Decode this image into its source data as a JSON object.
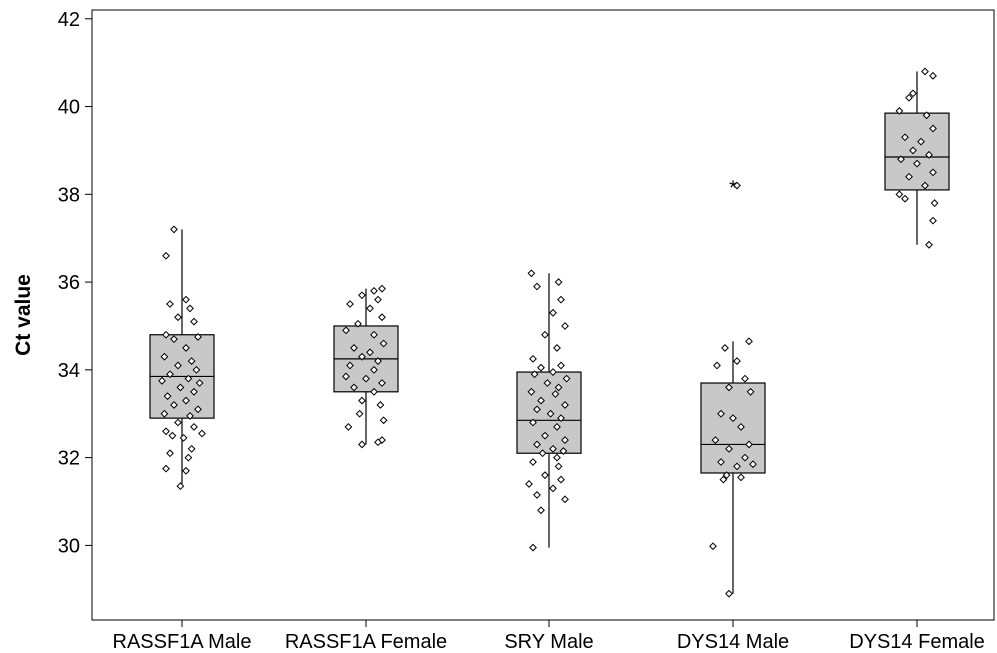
{
  "chart_data": {
    "type": "box",
    "ylabel": "Ct value",
    "xlabel": "",
    "ylim": [
      28.3,
      42.2
    ],
    "yticks": [
      30,
      32,
      34,
      36,
      38,
      40,
      42
    ],
    "grid": false,
    "categories": [
      "RASSF1A Male",
      "RASSF1A Female",
      "SRY Male",
      "DYS14 Male",
      "DYS14 Female"
    ],
    "boxes": [
      {
        "category": "RASSF1A Male",
        "whisker_low": 31.4,
        "q1": 32.9,
        "median": 33.85,
        "q3": 34.8,
        "whisker_high": 37.2,
        "outliers": []
      },
      {
        "category": "RASSF1A Female",
        "whisker_low": 32.3,
        "q1": 33.5,
        "median": 34.25,
        "q3": 35.0,
        "whisker_high": 35.85,
        "outliers": []
      },
      {
        "category": "SRY Male",
        "whisker_low": 29.95,
        "q1": 32.1,
        "median": 32.85,
        "q3": 33.95,
        "whisker_high": 36.2,
        "outliers": []
      },
      {
        "category": "DYS14 Male",
        "whisker_low": 28.9,
        "q1": 31.65,
        "median": 32.3,
        "q3": 33.7,
        "whisker_high": 34.65,
        "outliers": [
          38.2
        ]
      },
      {
        "category": "DYS14 Female",
        "whisker_low": 36.85,
        "q1": 38.1,
        "median": 38.85,
        "q3": 39.85,
        "whisker_high": 40.8,
        "outliers": []
      }
    ],
    "points": [
      [
        [
          -0.1,
          37.2
        ],
        [
          -0.2,
          36.6
        ],
        [
          0.05,
          35.6
        ],
        [
          -0.15,
          35.5
        ],
        [
          0.1,
          35.4
        ],
        [
          -0.05,
          35.2
        ],
        [
          0.15,
          35.1
        ],
        [
          -0.2,
          34.8
        ],
        [
          0.2,
          34.75
        ],
        [
          -0.1,
          34.7
        ],
        [
          0.05,
          34.5
        ],
        [
          -0.22,
          34.3
        ],
        [
          0.12,
          34.2
        ],
        [
          -0.05,
          34.1
        ],
        [
          0.18,
          34.0
        ],
        [
          -0.15,
          33.9
        ],
        [
          0.08,
          33.8
        ],
        [
          -0.25,
          33.75
        ],
        [
          0.22,
          33.7
        ],
        [
          -0.02,
          33.6
        ],
        [
          0.15,
          33.5
        ],
        [
          -0.18,
          33.4
        ],
        [
          0.05,
          33.3
        ],
        [
          -0.1,
          33.2
        ],
        [
          0.2,
          33.1
        ],
        [
          -0.22,
          33.0
        ],
        [
          0.1,
          32.95
        ],
        [
          -0.05,
          32.8
        ],
        [
          0.15,
          32.7
        ],
        [
          -0.2,
          32.6
        ],
        [
          0.25,
          32.55
        ],
        [
          -0.12,
          32.5
        ],
        [
          0.02,
          32.45
        ],
        [
          0.12,
          32.2
        ],
        [
          -0.15,
          32.1
        ],
        [
          0.08,
          32.0
        ],
        [
          -0.2,
          31.75
        ],
        [
          0.05,
          31.7
        ],
        [
          -0.02,
          31.35
        ]
      ],
      [
        [
          0.2,
          35.85
        ],
        [
          0.1,
          35.8
        ],
        [
          -0.05,
          35.7
        ],
        [
          0.15,
          35.6
        ],
        [
          -0.2,
          35.5
        ],
        [
          0.05,
          35.4
        ],
        [
          0.2,
          35.2
        ],
        [
          -0.1,
          35.05
        ],
        [
          -0.25,
          34.9
        ],
        [
          0.1,
          34.8
        ],
        [
          0.22,
          34.6
        ],
        [
          -0.15,
          34.5
        ],
        [
          0.05,
          34.4
        ],
        [
          -0.05,
          34.3
        ],
        [
          0.15,
          34.2
        ],
        [
          -0.2,
          34.1
        ],
        [
          0.1,
          34.0
        ],
        [
          -0.25,
          33.85
        ],
        [
          0.0,
          33.8
        ],
        [
          0.2,
          33.7
        ],
        [
          -0.15,
          33.6
        ],
        [
          0.1,
          33.5
        ],
        [
          -0.05,
          33.3
        ],
        [
          0.18,
          33.2
        ],
        [
          -0.08,
          33.0
        ],
        [
          0.22,
          32.85
        ],
        [
          -0.22,
          32.7
        ],
        [
          0.2,
          32.4
        ],
        [
          -0.05,
          32.3
        ],
        [
          0.15,
          32.35
        ]
      ],
      [
        [
          -0.22,
          36.2
        ],
        [
          0.12,
          36.0
        ],
        [
          -0.15,
          35.9
        ],
        [
          0.15,
          35.6
        ],
        [
          0.05,
          35.3
        ],
        [
          0.2,
          35.0
        ],
        [
          -0.05,
          34.8
        ],
        [
          0.1,
          34.5
        ],
        [
          -0.2,
          34.25
        ],
        [
          0.15,
          34.1
        ],
        [
          -0.1,
          34.05
        ],
        [
          0.05,
          33.95
        ],
        [
          -0.18,
          33.9
        ],
        [
          0.22,
          33.8
        ],
        [
          -0.02,
          33.7
        ],
        [
          0.12,
          33.6
        ],
        [
          -0.22,
          33.5
        ],
        [
          0.08,
          33.45
        ],
        [
          -0.1,
          33.3
        ],
        [
          0.2,
          33.2
        ],
        [
          -0.15,
          33.1
        ],
        [
          0.02,
          33.0
        ],
        [
          0.15,
          32.9
        ],
        [
          -0.2,
          32.8
        ],
        [
          0.1,
          32.7
        ],
        [
          -0.05,
          32.5
        ],
        [
          0.2,
          32.4
        ],
        [
          -0.15,
          32.3
        ],
        [
          0.05,
          32.2
        ],
        [
          0.18,
          32.15
        ],
        [
          -0.08,
          32.1
        ],
        [
          0.1,
          32.0
        ],
        [
          -0.2,
          31.9
        ],
        [
          0.12,
          31.8
        ],
        [
          -0.05,
          31.6
        ],
        [
          0.15,
          31.5
        ],
        [
          -0.25,
          31.4
        ],
        [
          0.05,
          31.3
        ],
        [
          -0.15,
          31.15
        ],
        [
          0.2,
          31.05
        ],
        [
          -0.1,
          30.8
        ],
        [
          -0.2,
          29.95
        ]
      ],
      [
        [
          0.05,
          38.2
        ],
        [
          0.2,
          34.65
        ],
        [
          -0.1,
          34.5
        ],
        [
          0.05,
          34.2
        ],
        [
          -0.2,
          34.1
        ],
        [
          0.15,
          33.8
        ],
        [
          -0.05,
          33.6
        ],
        [
          0.22,
          33.5
        ],
        [
          -0.15,
          33.0
        ],
        [
          0.0,
          32.9
        ],
        [
          0.1,
          32.7
        ],
        [
          -0.22,
          32.4
        ],
        [
          0.2,
          32.3
        ],
        [
          -0.05,
          32.2
        ],
        [
          0.15,
          32.0
        ],
        [
          -0.15,
          31.9
        ],
        [
          0.25,
          31.85
        ],
        [
          0.05,
          31.8
        ],
        [
          -0.08,
          31.6
        ],
        [
          0.1,
          31.55
        ],
        [
          -0.12,
          31.5
        ],
        [
          -0.25,
          29.98
        ],
        [
          -0.05,
          28.9
        ]
      ],
      [
        [
          0.1,
          40.8
        ],
        [
          0.2,
          40.7
        ],
        [
          -0.05,
          40.3
        ],
        [
          -0.1,
          40.2
        ],
        [
          -0.22,
          39.9
        ],
        [
          0.12,
          39.8
        ],
        [
          0.2,
          39.5
        ],
        [
          -0.15,
          39.3
        ],
        [
          0.05,
          39.2
        ],
        [
          -0.05,
          39.0
        ],
        [
          0.15,
          38.9
        ],
        [
          -0.2,
          38.8
        ],
        [
          0.0,
          38.7
        ],
        [
          0.2,
          38.5
        ],
        [
          -0.1,
          38.4
        ],
        [
          0.1,
          38.2
        ],
        [
          -0.22,
          38.0
        ],
        [
          -0.15,
          37.9
        ],
        [
          0.22,
          37.8
        ],
        [
          0.2,
          37.4
        ],
        [
          0.15,
          36.85
        ]
      ]
    ]
  }
}
